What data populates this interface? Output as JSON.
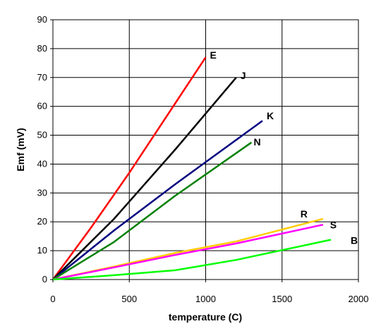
{
  "chart_data": {
    "type": "line",
    "title": "",
    "xlabel": "temperature (C)",
    "ylabel": "Emf (mV)",
    "xlim": [
      0,
      2000
    ],
    "ylim": [
      0,
      90
    ],
    "xticks": [
      "0",
      "500",
      "1000",
      "1500",
      "2000"
    ],
    "yticks": [
      "0",
      "10",
      "20",
      "30",
      "40",
      "50",
      "60",
      "70",
      "80",
      "90"
    ],
    "grid": true,
    "legend": "none (series labeled at line ends)",
    "series": [
      {
        "name": "E",
        "color": "#ff0000",
        "x": [
          0,
          250,
          500,
          750,
          1000
        ],
        "y": [
          0,
          18,
          37,
          57,
          77
        ]
      },
      {
        "name": "J",
        "color": "#000000",
        "x": [
          0,
          400,
          800,
          1200
        ],
        "y": [
          0,
          21,
          45,
          70
        ]
      },
      {
        "name": "K",
        "color": "#000080",
        "x": [
          0,
          400,
          800,
          1372
        ],
        "y": [
          0,
          17,
          33,
          55
        ]
      },
      {
        "name": "N",
        "color": "#008000",
        "x": [
          0,
          400,
          800,
          1300
        ],
        "y": [
          0,
          13,
          29,
          47.5
        ]
      },
      {
        "name": "R",
        "color": "#ffcc00",
        "x": [
          0,
          400,
          800,
          1200,
          1768
        ],
        "y": [
          0,
          4.5,
          9.2,
          13.2,
          21
        ]
      },
      {
        "name": "S",
        "color": "#ff00ff",
        "x": [
          0,
          400,
          800,
          1200,
          1768
        ],
        "y": [
          0,
          4.2,
          8.5,
          12.5,
          19
        ]
      },
      {
        "name": "B",
        "color": "#00ff00",
        "x": [
          0,
          400,
          800,
          1200,
          1820
        ],
        "y": [
          0,
          1.5,
          3.2,
          6.8,
          13.8
        ]
      }
    ],
    "label_order": [
      "E",
      "J",
      "K",
      "N",
      "R",
      "S",
      "B"
    ]
  }
}
